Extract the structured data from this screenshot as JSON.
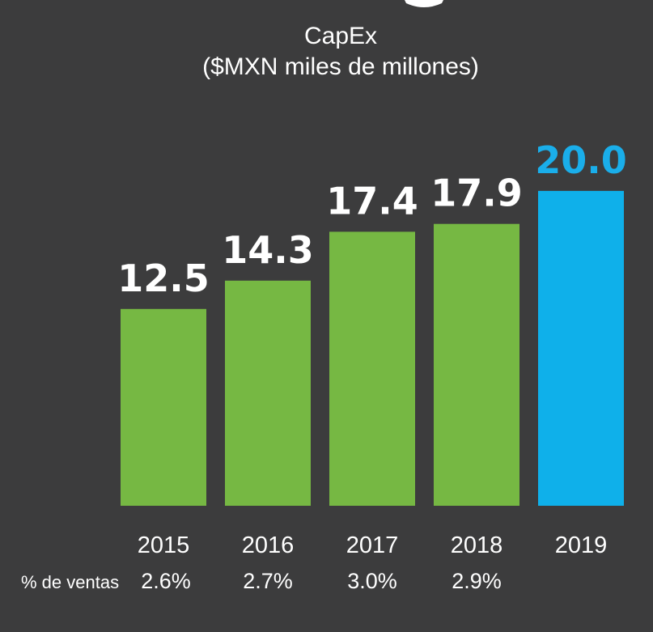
{
  "chart_data": {
    "type": "bar",
    "title": "CapEx",
    "subtitle": "($MXN miles de millones)",
    "categories": [
      "2015",
      "2016",
      "2017",
      "2018",
      "2019"
    ],
    "values": [
      12.5,
      14.3,
      17.4,
      17.9,
      20.0
    ],
    "value_labels": [
      "12.5",
      "14.3",
      "17.4",
      "17.9",
      "20.0"
    ],
    "ylim": [
      0,
      22.1
    ],
    "xlabel": "",
    "ylabel": "",
    "grid": false,
    "legend": "none",
    "secondary_row": {
      "label": "% de ventas",
      "values": [
        "2.6%",
        "2.7%",
        "3.0%",
        "2.9%",
        ""
      ]
    },
    "colors": {
      "background": "#3c3c3d",
      "bar_default": "#76b843",
      "bar_highlight": "#0fb0ea",
      "label_default": "#ffffff",
      "label_highlight": "#1aaeea"
    },
    "highlight_index": 4
  }
}
